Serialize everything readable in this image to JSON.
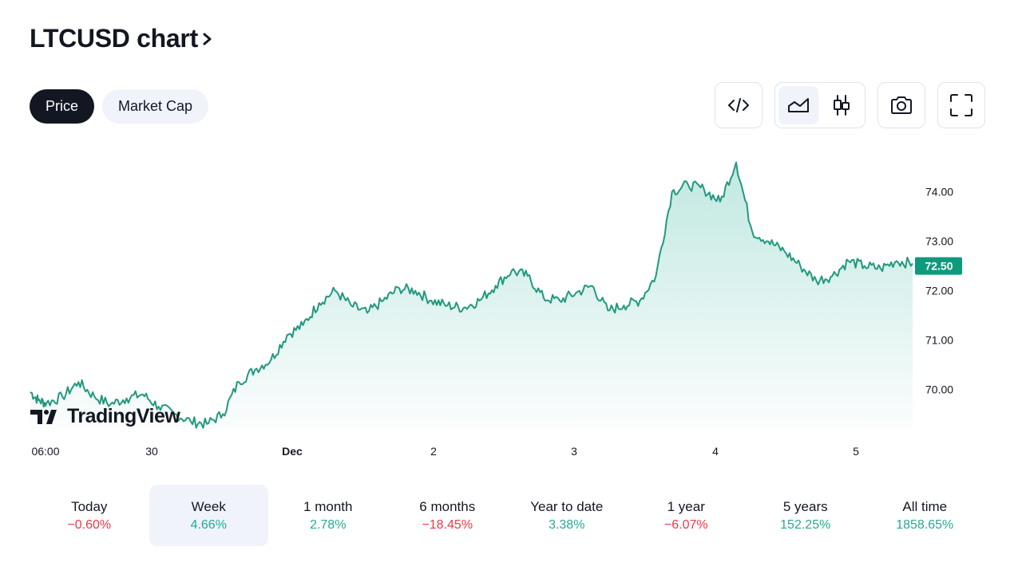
{
  "header": {
    "title": "LTCUSD chart"
  },
  "tabs": [
    {
      "label": "Price",
      "active": true
    },
    {
      "label": "Market Cap",
      "active": false
    }
  ],
  "toolbar": {
    "icons": [
      "embed-code-icon",
      "area-chart-icon",
      "candlestick-chart-icon",
      "camera-icon",
      "fullscreen-icon"
    ],
    "selected": "area-chart-icon"
  },
  "colors": {
    "line": "#22997f",
    "price_badge": "#0f9a7e",
    "positive": "#22ab94",
    "negative": "#f23645"
  },
  "watermark": "TradingView",
  "chart_data": {
    "type": "area",
    "symbol": "LTCUSD",
    "x_tick_labels": [
      "06:00",
      "30",
      "Dec",
      "2",
      "3",
      "4",
      "5"
    ],
    "y_tick_labels": [
      "74.00",
      "73.00",
      "72.00",
      "71.00",
      "70.00"
    ],
    "ylim": [
      69.2,
      74.9
    ],
    "last_price_label": "72.50",
    "x": [
      0,
      0.05,
      0.1,
      0.2,
      0.3,
      0.4,
      0.5,
      0.6,
      0.7,
      0.8,
      0.9,
      1.0,
      1.1,
      1.2,
      1.3,
      1.4,
      1.5,
      1.6,
      1.7,
      1.8,
      1.9,
      2.0,
      2.1,
      2.2,
      2.3,
      2.4,
      2.5,
      2.6,
      2.7,
      2.8,
      2.9,
      3.0,
      3.1,
      3.2,
      3.3,
      3.4,
      3.5,
      3.6,
      3.7,
      3.8,
      3.9,
      4.0,
      4.1,
      4.2,
      4.3,
      4.4,
      4.5,
      4.6,
      4.7,
      4.8,
      4.9,
      5.0,
      5.1,
      5.2,
      5.3,
      5.4,
      5.5
    ],
    "values": [
      69.95,
      69.78,
      69.72,
      69.85,
      70.15,
      69.85,
      69.7,
      69.82,
      69.9,
      69.65,
      69.5,
      69.35,
      69.3,
      69.5,
      70.15,
      70.4,
      70.6,
      71.1,
      71.3,
      71.75,
      72.0,
      71.7,
      71.55,
      71.8,
      72.05,
      72.0,
      71.8,
      71.7,
      71.65,
      71.8,
      72.1,
      72.4,
      72.3,
      71.85,
      71.8,
      71.95,
      72.1,
      71.6,
      71.7,
      71.8,
      72.3,
      74.0,
      74.15,
      74.05,
      73.8,
      74.6,
      73.2,
      73.0,
      72.8,
      72.5,
      72.2,
      72.3,
      72.6,
      72.5,
      72.45,
      72.6,
      72.55
    ]
  },
  "periods": [
    {
      "label": "Today",
      "value": "−0.60%",
      "trend": "neg"
    },
    {
      "label": "Week",
      "value": "4.66%",
      "trend": "pos",
      "active": true
    },
    {
      "label": "1 month",
      "value": "2.78%",
      "trend": "pos"
    },
    {
      "label": "6 months",
      "value": "−18.45%",
      "trend": "neg"
    },
    {
      "label": "Year to date",
      "value": "3.38%",
      "trend": "pos"
    },
    {
      "label": "1 year",
      "value": "−6.07%",
      "trend": "neg"
    },
    {
      "label": "5 years",
      "value": "152.25%",
      "trend": "pos"
    },
    {
      "label": "All time",
      "value": "1858.65%",
      "trend": "pos"
    }
  ]
}
